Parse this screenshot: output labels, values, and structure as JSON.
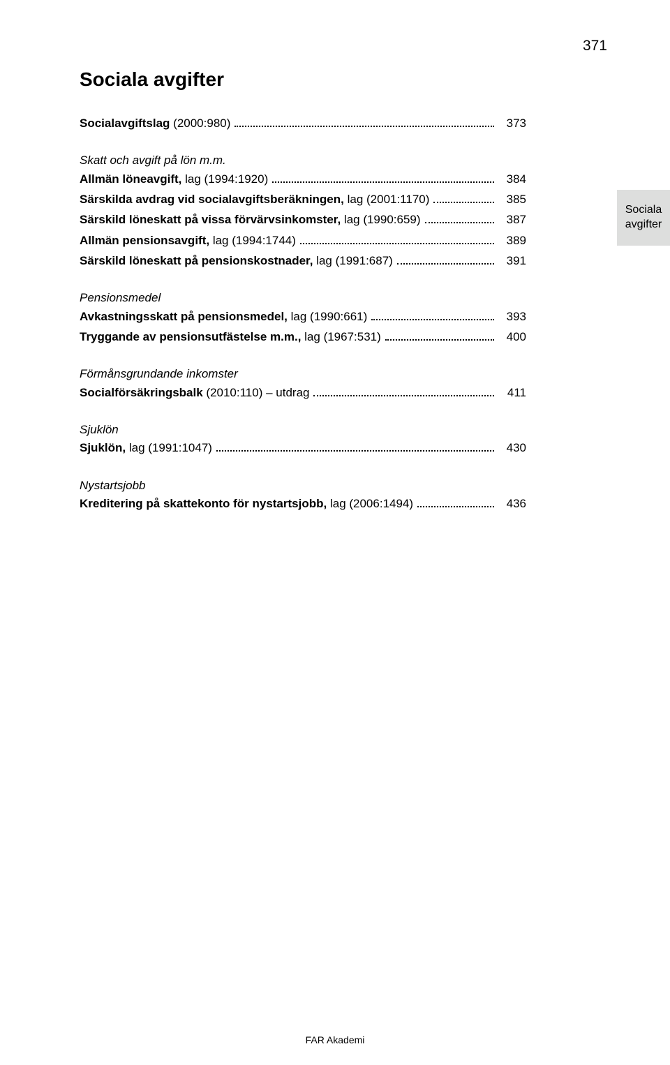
{
  "page_number": "371",
  "section_title": "Sociala avgifter",
  "side_tab_line1": "Sociala",
  "side_tab_line2": "avgifter",
  "side_tab_bg": "#dddedd",
  "footer": "FAR Akademi",
  "entries": [
    {
      "type": "row",
      "label_parts": [
        {
          "text": "Socialavgiftslag",
          "style": "bold"
        },
        {
          "text": " (2000:980)"
        }
      ],
      "page": "373",
      "space_after": true
    },
    {
      "type": "heading",
      "text": "Skatt och avgift på lön m.m."
    },
    {
      "type": "row",
      "label_parts": [
        {
          "text": "Allmän löneavgift,",
          "style": "bold"
        },
        {
          "text": " lag (1994:1920)"
        }
      ],
      "page": "384"
    },
    {
      "type": "row",
      "label_parts": [
        {
          "text": "Särskilda avdrag vid socialavgiftsberäkningen,",
          "style": "bold"
        },
        {
          "text": " lag (2001:1170)"
        }
      ],
      "page": "385"
    },
    {
      "type": "row",
      "label_parts": [
        {
          "text": "Särskild löneskatt på vissa förvärvsinkomster,",
          "style": "bold"
        },
        {
          "text": " lag (1990:659)"
        }
      ],
      "page": "387"
    },
    {
      "type": "row",
      "label_parts": [
        {
          "text": "Allmän pensionsavgift,",
          "style": "bold"
        },
        {
          "text": " lag (1994:1744)"
        }
      ],
      "page": "389"
    },
    {
      "type": "row",
      "label_parts": [
        {
          "text": "Särskild löneskatt på pensionskostnader,",
          "style": "bold"
        },
        {
          "text": " lag (1991:687)"
        }
      ],
      "page": "391",
      "space_after": true
    },
    {
      "type": "heading",
      "text": "Pensionsmedel"
    },
    {
      "type": "row",
      "label_parts": [
        {
          "text": "Avkastningsskatt på pensionsmedel,",
          "style": "bold"
        },
        {
          "text": " lag (1990:661)"
        }
      ],
      "page": "393"
    },
    {
      "type": "row",
      "label_parts": [
        {
          "text": "Tryggande av pensionsutfästelse m.m.,",
          "style": "bold"
        },
        {
          "text": " lag (1967:531)"
        }
      ],
      "page": "400",
      "space_after": true
    },
    {
      "type": "heading",
      "text": "Förmånsgrundande inkomster"
    },
    {
      "type": "row",
      "label_parts": [
        {
          "text": "Socialförsäkringsbalk",
          "style": "bold"
        },
        {
          "text": " (2010:110) – utdrag"
        }
      ],
      "page": "411",
      "space_after": true
    },
    {
      "type": "heading",
      "text": "Sjuklön"
    },
    {
      "type": "row",
      "label_parts": [
        {
          "text": "Sjuklön,",
          "style": "bold"
        },
        {
          "text": " lag (1991:1047)"
        }
      ],
      "page": "430",
      "space_after": true
    },
    {
      "type": "heading",
      "text": "Nystartsjobb"
    },
    {
      "type": "row",
      "label_parts": [
        {
          "text": "Kreditering på skattekonto för nystartsjobb,",
          "style": "bold"
        },
        {
          "text": " lag (2006:1494)"
        }
      ],
      "page": "436"
    }
  ]
}
